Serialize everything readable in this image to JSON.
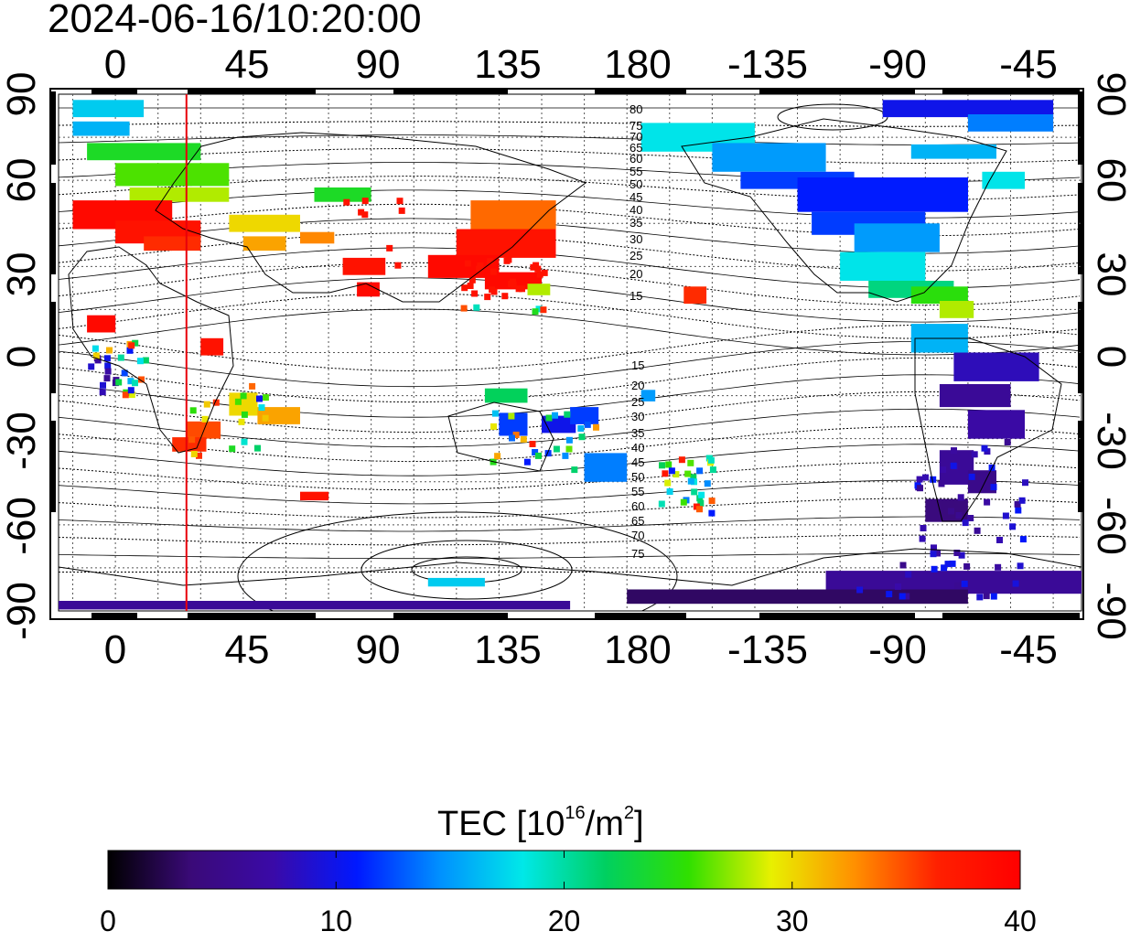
{
  "title": "2024-06-16/10:20:00",
  "map": {
    "x_ticks_top": [
      "0",
      "45",
      "90",
      "135",
      "180",
      "-135",
      "-90",
      "-45"
    ],
    "x_ticks_bottom": [
      "0",
      "45",
      "90",
      "135",
      "180",
      "-135",
      "-90",
      "-45"
    ],
    "y_ticks_left": [
      "90",
      "60",
      "30",
      "0",
      "-30",
      "-60",
      "-90"
    ],
    "y_ticks_right": [
      "90",
      "60",
      "30",
      "0",
      "-30",
      "-60",
      "-90"
    ],
    "contour_labels_north": [
      "80",
      "75",
      "70",
      "65",
      "60",
      "55",
      "50",
      "45",
      "40",
      "35",
      "30",
      "25",
      "20",
      "15"
    ],
    "contour_labels_south": [
      "15",
      "20",
      "25",
      "30",
      "35",
      "40",
      "45",
      "50",
      "55",
      "60",
      "65",
      "70",
      "75"
    ],
    "terminator_line_color": "#e8000b",
    "terminator_longitude": 25
  },
  "colorbar": {
    "label_main": "TEC  [10",
    "label_sup1": "16",
    "label_mid": "/m",
    "label_sup2": "2",
    "label_end": "]",
    "tick_labels": [
      "0",
      "10",
      "20",
      "30",
      "40"
    ],
    "range": [
      0,
      40
    ],
    "colors": [
      "#000000",
      "#3a0a78",
      "#3a0aa8",
      "#0018ff",
      "#0090ff",
      "#00e8e8",
      "#00d060",
      "#30e000",
      "#e8f000",
      "#ff9000",
      "#ff2000",
      "#ff0000"
    ]
  }
}
